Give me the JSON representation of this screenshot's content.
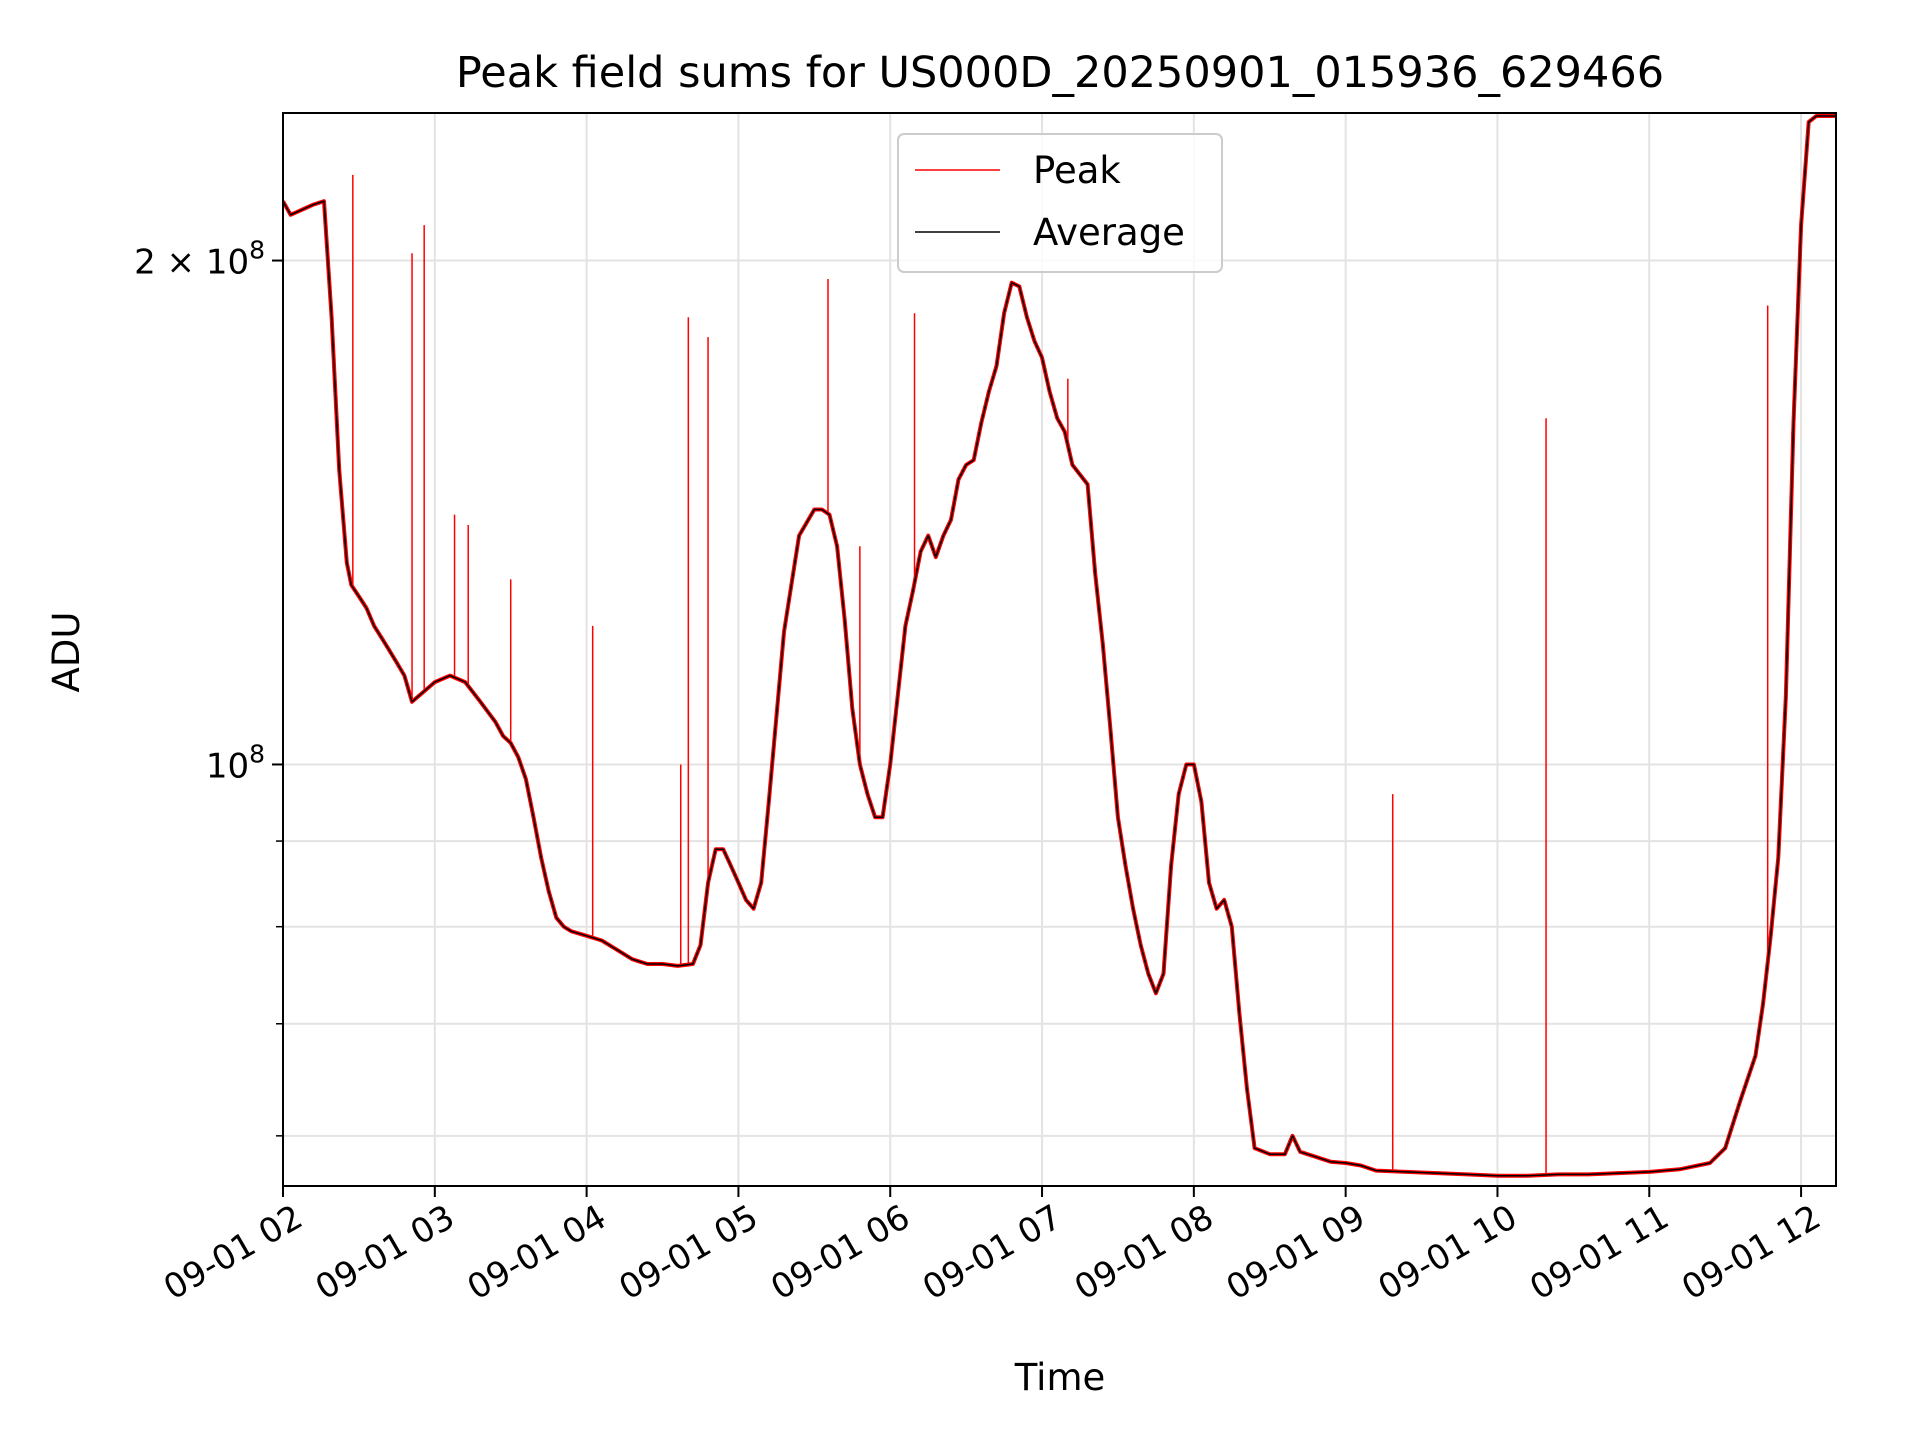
{
  "chart_data": {
    "type": "line",
    "title": "Peak field sums for US000D_20250901_015936_629466",
    "xlabel": "Time",
    "ylabel": "ADU",
    "y_scale": "log",
    "ylim": [
      56000000,
      245000000
    ],
    "x_unit": "hours since 09-01 00:00",
    "xlim": [
      2.0,
      12.23
    ],
    "x_ticks": [
      {
        "value": 2,
        "label": "09-01 02"
      },
      {
        "value": 3,
        "label": "09-01 03"
      },
      {
        "value": 4,
        "label": "09-01 04"
      },
      {
        "value": 5,
        "label": "09-01 05"
      },
      {
        "value": 6,
        "label": "09-01 06"
      },
      {
        "value": 7,
        "label": "09-01 07"
      },
      {
        "value": 8,
        "label": "09-01 08"
      },
      {
        "value": 9,
        "label": "09-01 09"
      },
      {
        "value": 10,
        "label": "09-01 10"
      },
      {
        "value": 11,
        "label": "09-01 11"
      },
      {
        "value": 12,
        "label": "09-01 12"
      }
    ],
    "y_major_ticks": [
      {
        "value": 100000000,
        "base": "10",
        "exp": "8",
        "coef": ""
      },
      {
        "value": 200000000,
        "base": "10",
        "exp": "8",
        "coef": "2 × "
      }
    ],
    "y_minor_ticks": [
      60000000,
      70000000,
      80000000,
      90000000
    ],
    "grid": true,
    "legend": "upper center",
    "series": [
      {
        "name": "Peak",
        "color": "#ff0000",
        "baseline_follows": "Average",
        "spikes": [
          {
            "x": 2.46,
            "y": 225000000
          },
          {
            "x": 2.85,
            "y": 202000000
          },
          {
            "x": 2.93,
            "y": 210000000
          },
          {
            "x": 3.13,
            "y": 141000000
          },
          {
            "x": 3.22,
            "y": 139000000
          },
          {
            "x": 3.5,
            "y": 129000000
          },
          {
            "x": 4.04,
            "y": 121000000
          },
          {
            "x": 4.62,
            "y": 100000000
          },
          {
            "x": 4.67,
            "y": 185000000
          },
          {
            "x": 4.8,
            "y": 180000000
          },
          {
            "x": 5.59,
            "y": 195000000
          },
          {
            "x": 5.8,
            "y": 135000000
          },
          {
            "x": 6.16,
            "y": 186000000
          },
          {
            "x": 7.17,
            "y": 170000000
          },
          {
            "x": 9.31,
            "y": 96000000
          },
          {
            "x": 10.32,
            "y": 161000000
          },
          {
            "x": 11.78,
            "y": 188000000
          },
          {
            "x": 11.94,
            "y": 158000000
          }
        ]
      },
      {
        "name": "Average",
        "color": "#000000",
        "x": [
          2.0,
          2.05,
          2.1,
          2.15,
          2.2,
          2.27,
          2.32,
          2.37,
          2.42,
          2.45,
          2.5,
          2.55,
          2.6,
          2.65,
          2.7,
          2.75,
          2.8,
          2.85,
          2.9,
          3.0,
          3.1,
          3.2,
          3.3,
          3.4,
          3.45,
          3.5,
          3.55,
          3.6,
          3.65,
          3.7,
          3.75,
          3.8,
          3.85,
          3.9,
          4.0,
          4.1,
          4.2,
          4.3,
          4.4,
          4.5,
          4.6,
          4.7,
          4.75,
          4.8,
          4.85,
          4.9,
          4.95,
          5.0,
          5.05,
          5.1,
          5.15,
          5.2,
          5.3,
          5.4,
          5.5,
          5.55,
          5.6,
          5.65,
          5.7,
          5.75,
          5.8,
          5.85,
          5.9,
          5.95,
          6.0,
          6.1,
          6.15,
          6.2,
          6.25,
          6.3,
          6.35,
          6.4,
          6.45,
          6.5,
          6.55,
          6.6,
          6.65,
          6.7,
          6.75,
          6.8,
          6.85,
          6.9,
          6.95,
          7.0,
          7.05,
          7.1,
          7.15,
          7.2,
          7.25,
          7.3,
          7.35,
          7.4,
          7.45,
          7.5,
          7.55,
          7.6,
          7.65,
          7.7,
          7.75,
          7.8,
          7.85,
          7.9,
          7.95,
          8.0,
          8.05,
          8.1,
          8.15,
          8.2,
          8.25,
          8.3,
          8.35,
          8.4,
          8.5,
          8.6,
          8.65,
          8.7,
          8.8,
          8.9,
          9.0,
          9.1,
          9.2,
          9.4,
          9.6,
          9.8,
          10.0,
          10.2,
          10.4,
          10.6,
          10.8,
          11.0,
          11.2,
          11.4,
          11.5,
          11.6,
          11.7,
          11.75,
          11.8,
          11.85,
          11.9,
          11.95,
          12.0,
          12.05,
          12.1,
          12.15,
          12.23
        ],
        "y": [
          217000000,
          213000000,
          214000000,
          215000000,
          216000000,
          217000000,
          185000000,
          150000000,
          132000000,
          128000000,
          126000000,
          124000000,
          121000000,
          119000000,
          117000000,
          115000000,
          113000000,
          109000000,
          110000000,
          112000000,
          113000000,
          112000000,
          109000000,
          106000000,
          104000000,
          103000000,
          101000000,
          98000000,
          93000000,
          88000000,
          84000000,
          81000000,
          80000000,
          79500000,
          79000000,
          78500000,
          77500000,
          76500000,
          76000000,
          76000000,
          75800000,
          76000000,
          78000000,
          85000000,
          89000000,
          89000000,
          87000000,
          85000000,
          83000000,
          82000000,
          85000000,
          95000000,
          120000000,
          137000000,
          142000000,
          142000000,
          141000000,
          135000000,
          122000000,
          108000000,
          100000000,
          96000000,
          93000000,
          93000000,
          100000000,
          121000000,
          127000000,
          134000000,
          137000000,
          133000000,
          137000000,
          140000000,
          148000000,
          151000000,
          152000000,
          160000000,
          167000000,
          173000000,
          186000000,
          194000000,
          193000000,
          185000000,
          179000000,
          175000000,
          167000000,
          161000000,
          158000000,
          151000000,
          149000000,
          147000000,
          130000000,
          118000000,
          105000000,
          93000000,
          87000000,
          82000000,
          78000000,
          75000000,
          73000000,
          75000000,
          87000000,
          96000000,
          100000000,
          100000000,
          95000000,
          85000000,
          82000000,
          83000000,
          80000000,
          71000000,
          64000000,
          59000000,
          58500000,
          58500000,
          60000000,
          58700000,
          58300000,
          57900000,
          57800000,
          57600000,
          57200000,
          57100000,
          57000000,
          56900000,
          56800000,
          56800000,
          56900000,
          56900000,
          57000000,
          57100000,
          57300000,
          57800000,
          59000000,
          63000000,
          67000000,
          72000000,
          79000000,
          88000000,
          110000000,
          160000000,
          210000000,
          242000000,
          244000000,
          244000000,
          244000000
        ]
      }
    ]
  }
}
